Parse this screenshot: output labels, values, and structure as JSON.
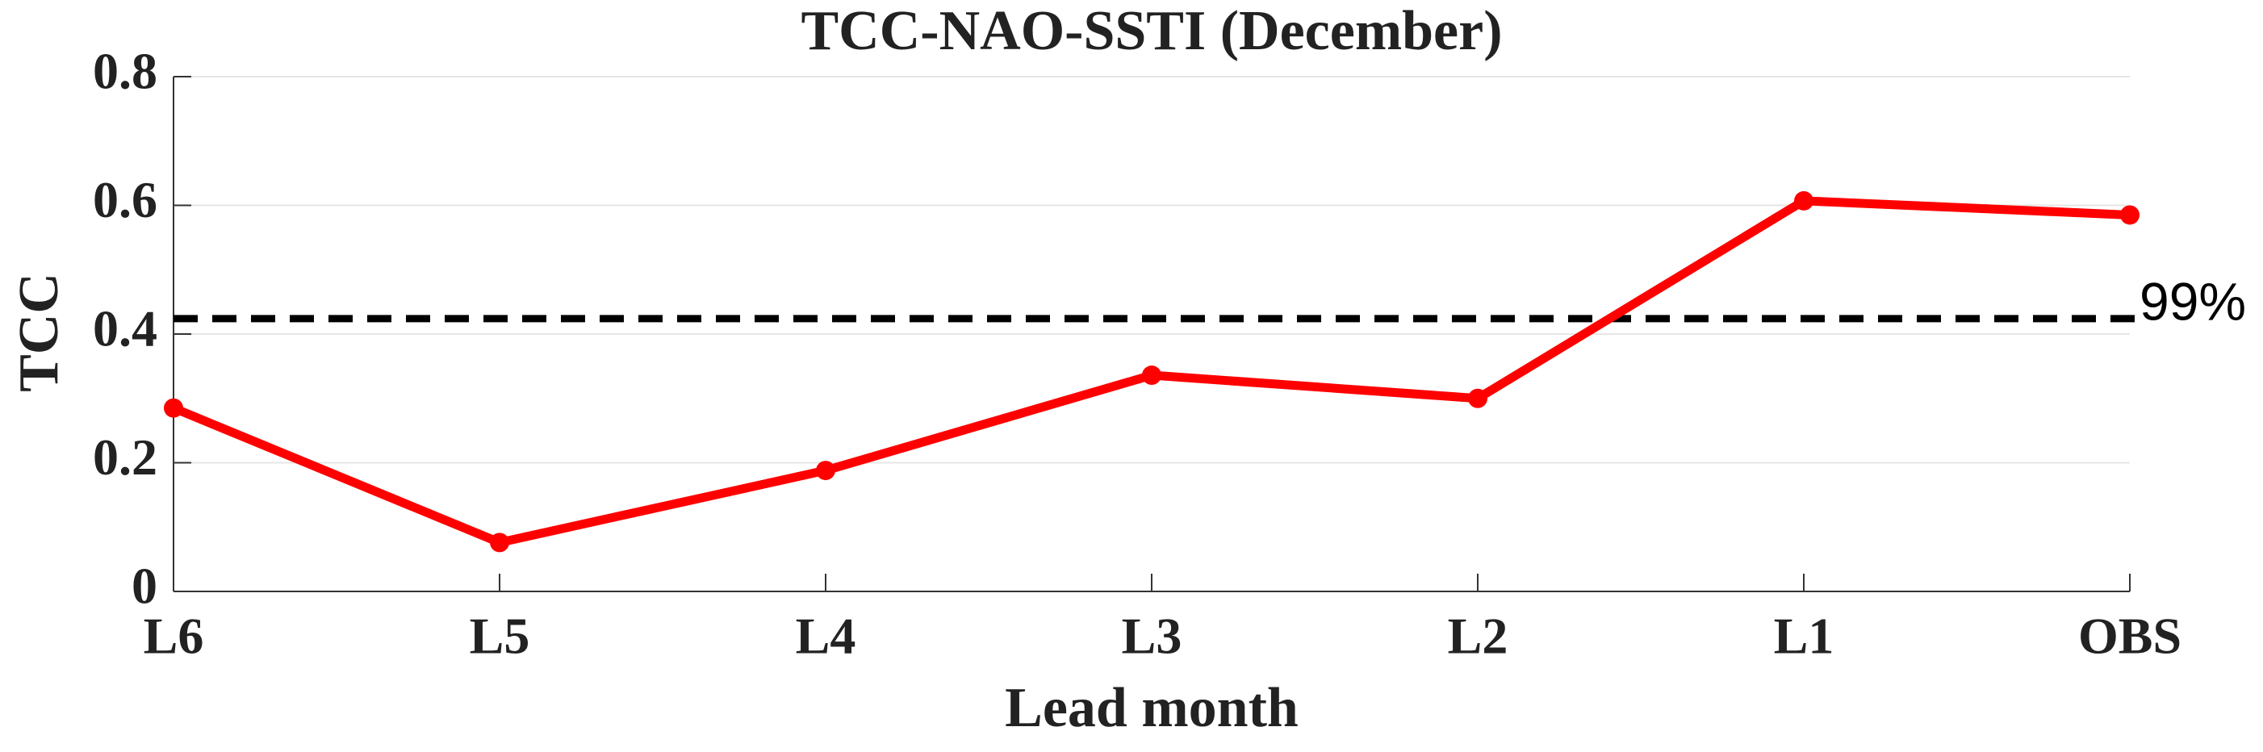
{
  "chart_data": {
    "type": "line",
    "title": "TCC-NAO-SSTI (December)",
    "x_label": "Lead month",
    "y_label": "TCC",
    "categories": [
      "L6",
      "L5",
      "L4",
      "L3",
      "L2",
      "L1",
      "OBS"
    ],
    "series": [
      {
        "name": "TCC",
        "color": "#ff0000",
        "values": [
          0.285,
          0.076,
          0.188,
          0.336,
          0.3,
          0.607,
          0.585
        ]
      }
    ],
    "ylim": [
      0,
      0.8
    ],
    "yticks": [
      0,
      0.2,
      0.4,
      0.6,
      0.8
    ],
    "grid": true,
    "reference_line": {
      "value": 0.424,
      "label": "99%",
      "color": "#000000"
    }
  }
}
